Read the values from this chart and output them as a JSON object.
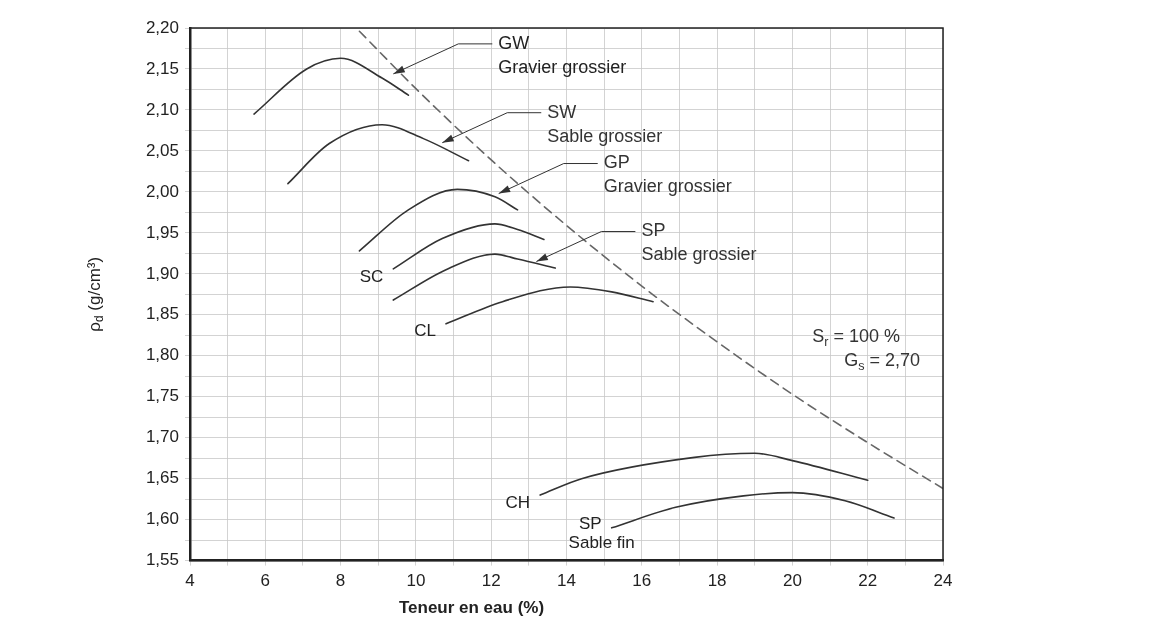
{
  "chart_data": {
    "type": "line",
    "xlabel": "Teneur en eau (%)",
    "ylabel": "ρ$_{d}$ (g/cm³)",
    "xlim": [
      4,
      24
    ],
    "ylim": [
      1.55,
      2.2
    ],
    "xticks": [
      4,
      {
        "value": 5,
        "label": null
      },
      6,
      {
        "value": 7,
        "label": null
      },
      8,
      {
        "value": 9,
        "label": null
      },
      10,
      {
        "value": 11,
        "label": null
      },
      12,
      {
        "value": 13,
        "label": null
      },
      14,
      {
        "value": 15,
        "label": null
      },
      16,
      {
        "value": 17,
        "label": null
      },
      18,
      {
        "value": 19,
        "label": null
      },
      20,
      {
        "value": 21,
        "label": null
      },
      22,
      {
        "value": 23,
        "label": null
      },
      24
    ],
    "yticks": [
      {
        "value": 1.55,
        "label": "1,55"
      },
      {
        "value": 1.575,
        "label": null
      },
      {
        "value": 1.6,
        "label": "1,60"
      },
      {
        "value": 1.625,
        "label": null
      },
      {
        "value": 1.65,
        "label": "1,65"
      },
      {
        "value": 1.675,
        "label": null
      },
      {
        "value": 1.7,
        "label": "1,70"
      },
      {
        "value": 1.725,
        "label": null
      },
      {
        "value": 1.75,
        "label": "1,75"
      },
      {
        "value": 1.775,
        "label": null
      },
      {
        "value": 1.8,
        "label": "1,80"
      },
      {
        "value": 1.825,
        "label": null
      },
      {
        "value": 1.85,
        "label": "1,85"
      },
      {
        "value": 1.875,
        "label": null
      },
      {
        "value": 1.9,
        "label": "1,90"
      },
      {
        "value": 1.925,
        "label": null
      },
      {
        "value": 1.95,
        "label": "1,95"
      },
      {
        "value": 1.975,
        "label": null
      },
      {
        "value": 2.0,
        "label": "2,00"
      },
      {
        "value": 2.025,
        "label": null
      },
      {
        "value": 2.05,
        "label": "2,05"
      },
      {
        "value": 2.075,
        "label": null
      },
      {
        "value": 2.1,
        "label": "2,10"
      },
      {
        "value": 2.125,
        "label": null
      },
      {
        "value": 2.15,
        "label": "2,15"
      },
      {
        "value": 2.175,
        "label": null
      },
      {
        "value": 2.2,
        "label": "2,20"
      }
    ],
    "grid": true,
    "legend": false,
    "marker": "none",
    "line_style": "solid",
    "series": [
      {
        "color": "#333333",
        "x": [
          5.7,
          7.1,
          8.0,
          9.1,
          9.8
        ],
        "values": [
          2.095,
          2.15,
          2.163,
          2.139,
          2.118
        ]
      },
      {
        "color": "#333333",
        "x": [
          6.6,
          7.7,
          9.1,
          10.2,
          11.4
        ],
        "values": [
          2.01,
          2.059,
          2.082,
          2.065,
          2.038
        ]
      },
      {
        "color": "#333333",
        "x": [
          8.5,
          9.8,
          11.1,
          12.1,
          12.7
        ],
        "values": [
          1.928,
          1.978,
          2.003,
          1.994,
          1.978
        ]
      },
      {
        "name": "SC",
        "color": "#333333",
        "x": [
          9.4,
          10.7,
          12.1,
          12.7,
          13.4
        ],
        "values": [
          1.906,
          1.943,
          1.961,
          1.954,
          1.942
        ]
      },
      {
        "color": "#333333",
        "x": [
          9.4,
          10.8,
          12.1,
          12.7,
          13.7
        ],
        "values": [
          1.868,
          1.905,
          1.924,
          1.918,
          1.907
        ]
      },
      {
        "name": "CL",
        "color": "#333333",
        "x": [
          10.8,
          12.3,
          14.1,
          15.2,
          16.3
        ],
        "values": [
          1.839,
          1.866,
          1.884,
          1.878,
          1.866
        ]
      },
      {
        "name": "CH",
        "color": "#333333",
        "x": [
          13.3,
          14.4,
          17.4,
          19.0,
          20.0,
          22.0
        ],
        "values": [
          1.63,
          1.65,
          1.676,
          1.681,
          1.672,
          1.648
        ]
      },
      {
        "name": "SP\nSable fin",
        "color": "#333333",
        "x": [
          15.2,
          16.9,
          18.7,
          20.0,
          21.4,
          22.7
        ],
        "values": [
          1.59,
          1.615,
          1.629,
          1.633,
          1.623,
          1.602
        ]
      },
      {
        "color": "#666666",
        "line_style": "dashed",
        "x": [
          8.5,
          10,
          12,
          14,
          16,
          18,
          20,
          22,
          24
        ],
        "values": [
          2.196,
          2.126,
          2.039,
          1.959,
          1.885,
          1.817,
          1.753,
          1.694,
          1.638
        ]
      }
    ],
    "annotations": [
      {
        "text": "GW\nGravier grossier",
        "x": 9.4,
        "y": 2.144
      },
      {
        "text": "SW\nSable grossier",
        "x": 10.7,
        "y": 2.06
      },
      {
        "text": "GP\nGravier grossier",
        "x": 12.2,
        "y": 1.998
      },
      {
        "text": "SP\nSable grossier",
        "x": 13.2,
        "y": 1.915
      },
      "S$_{r}$ = 100 %\nG$_{s}$ = 2,70"
    ]
  }
}
